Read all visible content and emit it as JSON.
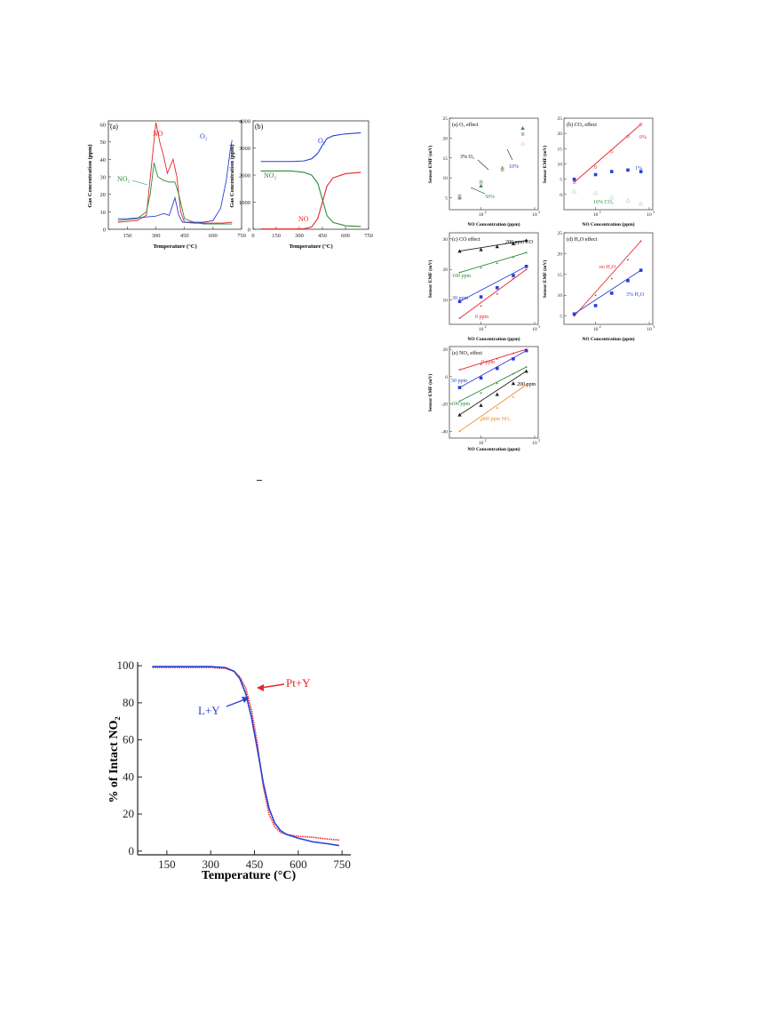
{
  "colors": {
    "red": "#e8242a",
    "blue": "#2a3fd6",
    "green": "#2e8b3a",
    "black": "#222222",
    "orange": "#f08a24",
    "gray": "#bbbbbb"
  },
  "fig_top": {
    "a": {
      "label": "(a)",
      "ylabel": "Gas Concentration (ppm)",
      "xlabel": "Temperature (°C)",
      "yticks": [
        "0",
        "10",
        "20",
        "30",
        "40",
        "50",
        "60"
      ],
      "xticks": [
        "150",
        "300",
        "450",
        "600",
        "750"
      ],
      "series_labels": {
        "no": "NO",
        "no2": "NO₂",
        "o2": "O₂"
      }
    },
    "b": {
      "label": "(b)",
      "ylabel": "Gas Concentration (ppm)",
      "xlabel": "Temperature (°C)",
      "yticks": [
        "0",
        "1000",
        "2000",
        "3000",
        "4000"
      ],
      "xticks": [
        "0",
        "150",
        "300",
        "450",
        "600",
        "750"
      ],
      "series_labels": {
        "o2": "O₂",
        "no2": "NO₂",
        "no": "NO"
      }
    }
  },
  "fig_right": {
    "ylabel": "Sensor EMF (mV)",
    "xlabel": "NO Concentration (ppm)",
    "x10": "10",
    "xexp2": "2",
    "xexp3": "3",
    "a": {
      "title": "(a) O₂ effect",
      "yticks": [
        "5",
        "10",
        "15",
        "20",
        "25"
      ],
      "labels": [
        "3% O₂",
        "10%",
        "50%"
      ]
    },
    "b": {
      "title": "(b) CO₂ effect",
      "yticks": [
        "0",
        "5",
        "10",
        "15",
        "20",
        "25"
      ],
      "labels": [
        "0%",
        "1%",
        "16% CO₂"
      ]
    },
    "c": {
      "title": "(c) CO effect",
      "yticks": [
        "10",
        "20",
        "30"
      ],
      "labels": [
        "200 ppm CO",
        "100 ppm",
        "30 ppm",
        "0 ppm"
      ]
    },
    "d": {
      "title": "(d) H₂O effect",
      "yticks": [
        "5",
        "10",
        "15",
        "20",
        "25"
      ],
      "labels": [
        "no H₂O",
        "3% H₂O"
      ]
    },
    "e": {
      "title": "(e) NO₂ effect",
      "yticks": [
        "20",
        "0",
        "-20",
        "-40"
      ],
      "labels": [
        "0 ppm",
        "50 ppm",
        "100 ppm",
        "200 ppm",
        "400 ppm NO₂"
      ]
    }
  },
  "fig_bottom": {
    "ylabel": "% of Intact NO₂",
    "xlabel": "Temperature (°C)",
    "yticks": [
      "0",
      "20",
      "40",
      "60",
      "80",
      "100"
    ],
    "xticks": [
      "150",
      "300",
      "450",
      "600",
      "750"
    ],
    "series": {
      "pty": "Pt+Y",
      "ly": "L+Y"
    }
  },
  "chart_data": [
    {
      "type": "line",
      "title": "(a)",
      "xlabel": "Temperature (°C)",
      "ylabel": "Gas Concentration (ppm)",
      "xlim": [
        50,
        750
      ],
      "ylim": [
        0,
        62
      ],
      "series": [
        {
          "name": "NO",
          "x": [
            100,
            150,
            200,
            250,
            280,
            300,
            320,
            340,
            360,
            390,
            410,
            430,
            450,
            500,
            550,
            600,
            650,
            700
          ],
          "values": [
            4,
            4.5,
            5,
            8,
            40,
            61,
            50,
            42,
            32,
            40,
            30,
            10,
            4,
            3.5,
            3.5,
            3.5,
            3.5,
            4
          ]
        },
        {
          "name": "NO₂",
          "x": [
            100,
            150,
            200,
            250,
            270,
            290,
            310,
            340,
            370,
            400,
            420,
            450,
            500,
            550,
            600,
            650,
            700
          ],
          "values": [
            5,
            5.5,
            6,
            10,
            20,
            38,
            30,
            28,
            27,
            27,
            20,
            6,
            4,
            3,
            3,
            3,
            3
          ]
        },
        {
          "name": "O₂",
          "x": [
            100,
            150,
            200,
            250,
            300,
            340,
            370,
            400,
            420,
            440,
            500,
            550,
            600,
            640,
            670,
            690,
            700
          ],
          "values": [
            6,
            6,
            6.5,
            7,
            7.5,
            9,
            8,
            18,
            8,
            4,
            4,
            4,
            5,
            12,
            28,
            45,
            51
          ]
        }
      ]
    },
    {
      "type": "line",
      "title": "(b)",
      "xlabel": "Temperature (°C)",
      "ylabel": "Gas Concentration (ppm)",
      "xlim": [
        0,
        750
      ],
      "ylim": [
        0,
        4000
      ],
      "series": [
        {
          "name": "O₂",
          "x": [
            50,
            150,
            250,
            330,
            380,
            420,
            450,
            480,
            520,
            600,
            700
          ],
          "values": [
            2500,
            2500,
            2500,
            2520,
            2600,
            2800,
            3100,
            3350,
            3450,
            3520,
            3560
          ]
        },
        {
          "name": "NO₂",
          "x": [
            50,
            150,
            250,
            330,
            380,
            420,
            450,
            480,
            520,
            600,
            700
          ],
          "values": [
            2150,
            2150,
            2150,
            2100,
            2000,
            1700,
            1100,
            500,
            250,
            130,
            100
          ]
        },
        {
          "name": "NO",
          "x": [
            50,
            150,
            250,
            330,
            380,
            420,
            450,
            480,
            520,
            600,
            700
          ],
          "values": [
            10,
            10,
            10,
            20,
            80,
            400,
            1000,
            1600,
            1900,
            2050,
            2100
          ]
        }
      ]
    },
    {
      "type": "scatter",
      "title": "(a) O₂ effect",
      "xlabel": "NO Concentration (ppm)",
      "ylabel": "Sensor EMF (mV)",
      "xscale": "log",
      "xlim": [
        30,
        1000
      ],
      "ylim": [
        2,
        25
      ],
      "series": [
        {
          "name": "3% O₂",
          "x": [
            40,
            100,
            250,
            600
          ],
          "values": [
            5,
            8,
            12.5,
            22.5
          ]
        },
        {
          "name": "10%",
          "x": [
            40,
            100,
            250,
            600
          ],
          "values": [
            5.5,
            9,
            12,
            21
          ]
        },
        {
          "name": "50%",
          "x": [
            40,
            100,
            250,
            600
          ],
          "values": [
            5.2,
            8.5,
            12.2,
            18.5
          ]
        }
      ]
    },
    {
      "type": "scatter",
      "title": "(b) CO₂ effect",
      "xlabel": "NO Concentration (ppm)",
      "ylabel": "Sensor EMF (mV)",
      "xscale": "log",
      "xlim": [
        30,
        1000
      ],
      "ylim": [
        -5,
        25
      ],
      "series": [
        {
          "name": "0%",
          "x": [
            40,
            100,
            200,
            400,
            700
          ],
          "values": [
            4,
            9,
            14,
            19,
            23
          ]
        },
        {
          "name": "1%",
          "x": [
            40,
            100,
            200,
            400,
            700
          ],
          "values": [
            5,
            6.5,
            7.5,
            8,
            7.5
          ]
        },
        {
          "name": "16% CO₂",
          "x": [
            40,
            100,
            200,
            400,
            700
          ],
          "values": [
            1,
            0.5,
            -1,
            -2,
            -3
          ]
        }
      ]
    },
    {
      "type": "line",
      "title": "(c) CO effect",
      "xlabel": "NO Concentration (ppm)",
      "ylabel": "Sensor EMF (mV)",
      "xscale": "log",
      "xlim": [
        30,
        1000
      ],
      "ylim": [
        2,
        32
      ],
      "series": [
        {
          "name": "200 ppm CO",
          "x": [
            40,
            100,
            200,
            400,
            700
          ],
          "values": [
            26,
            26.5,
            27.5,
            28.5,
            29.5
          ]
        },
        {
          "name": "100 ppm",
          "x": [
            40,
            100,
            200,
            400,
            700
          ],
          "values": [
            19,
            20.5,
            22,
            24,
            25.5
          ]
        },
        {
          "name": "30 ppm",
          "x": [
            40,
            100,
            200,
            400,
            700
          ],
          "values": [
            9.5,
            11,
            14,
            18,
            21
          ]
        },
        {
          "name": "0 ppm",
          "x": [
            40,
            100,
            200,
            400,
            700
          ],
          "values": [
            4,
            8,
            12,
            17,
            20
          ]
        }
      ]
    },
    {
      "type": "line",
      "title": "(d) H₂O effect",
      "xlabel": "NO Concentration (ppm)",
      "ylabel": "Sensor EMF (mV)",
      "xscale": "log",
      "xlim": [
        30,
        1000
      ],
      "ylim": [
        3,
        25
      ],
      "series": [
        {
          "name": "no H₂O",
          "x": [
            40,
            100,
            200,
            400,
            700
          ],
          "values": [
            5,
            10,
            14,
            18.5,
            23
          ]
        },
        {
          "name": "3% H₂O",
          "x": [
            40,
            100,
            200,
            400,
            700
          ],
          "values": [
            5.5,
            7.5,
            10.5,
            13.5,
            16
          ]
        }
      ]
    },
    {
      "type": "line",
      "title": "(e) NO₂ effect",
      "xlabel": "NO Concentration (ppm)",
      "ylabel": "Sensor EMF (mV)",
      "xscale": "log",
      "xlim": [
        30,
        1000
      ],
      "ylim": [
        -45,
        22
      ],
      "series": [
        {
          "name": "0 ppm",
          "x": [
            40,
            100,
            200,
            400,
            700
          ],
          "values": [
            5,
            9,
            13,
            17,
            20
          ]
        },
        {
          "name": "50 ppm",
          "x": [
            40,
            100,
            200,
            400,
            700
          ],
          "values": [
            -8,
            -1,
            6,
            13,
            19
          ]
        },
        {
          "name": "100 ppm",
          "x": [
            40,
            100,
            200,
            400,
            700
          ],
          "values": [
            -18,
            -12,
            -5,
            2,
            7
          ]
        },
        {
          "name": "200 ppm",
          "x": [
            40,
            100,
            200,
            400,
            700
          ],
          "values": [
            -28,
            -21,
            -13,
            -5,
            4
          ]
        },
        {
          "name": "400 ppm NO₂",
          "x": [
            40,
            100,
            200,
            400,
            700
          ],
          "values": [
            -40,
            -32,
            -23,
            -15,
            -6
          ]
        }
      ]
    },
    {
      "type": "line",
      "title": "",
      "xlabel": "Temperature (°C)",
      "ylabel": "% of Intact NO₂",
      "xlim": [
        50,
        780
      ],
      "ylim": [
        0,
        102
      ],
      "series": [
        {
          "name": "Pt+Y",
          "x": [
            100,
            150,
            200,
            250,
            300,
            350,
            380,
            400,
            420,
            440,
            460,
            480,
            500,
            520,
            540,
            560,
            600,
            650,
            700,
            740
          ],
          "values": [
            99,
            99,
            99,
            99,
            99,
            98.5,
            97,
            94,
            88,
            76,
            58,
            35,
            20,
            13,
            10,
            9,
            8,
            7.5,
            6.5,
            6
          ]
        },
        {
          "name": "L+Y",
          "x": [
            100,
            150,
            200,
            250,
            300,
            350,
            380,
            400,
            420,
            440,
            460,
            480,
            500,
            520,
            540,
            560,
            600,
            650,
            700,
            740
          ],
          "values": [
            99.5,
            99.5,
            99.5,
            99.5,
            99.5,
            99,
            97,
            93,
            85,
            72,
            55,
            37,
            23,
            15,
            11,
            9,
            7,
            5,
            4,
            3
          ]
        }
      ]
    }
  ]
}
